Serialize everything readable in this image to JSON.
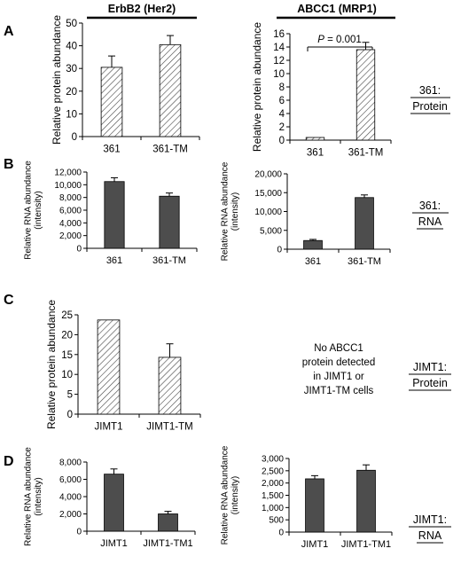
{
  "figure": {
    "column_titles": [
      "ErbB2 (Her2)",
      "ABCC1 (MRP1)"
    ],
    "panel_letters": [
      "A",
      "B",
      "C",
      "D"
    ],
    "row_labels": [
      {
        "line1": "361:",
        "line2": "Protein"
      },
      {
        "line1": "361:",
        "line2": "RNA"
      },
      {
        "line1": "JIMT1:",
        "line2": "Protein"
      },
      {
        "line1": "JIMT1:",
        "line2": "RNA"
      }
    ],
    "no_data_note": [
      "No ABCC1",
      "protein detected",
      "in JIMT1 or",
      "JIMT1-TM cells"
    ],
    "p_value": {
      "label": "P",
      "text": " = 0.001"
    }
  },
  "colors": {
    "hatched_fill": "#ffffff",
    "hatch_line": "#444444",
    "solid_fill": "#4d4d4d",
    "axis": "#000000"
  },
  "chart_data": [
    {
      "id": "A-left",
      "type": "bar",
      "fill": "hatched",
      "categories": [
        "361",
        "361-TM"
      ],
      "values": [
        30.5,
        40.5
      ],
      "errors": [
        5,
        4
      ],
      "ylim": [
        0,
        50
      ],
      "yticks": [
        0,
        10,
        20,
        30,
        40,
        50
      ],
      "ytick_labels": [
        "0",
        "10",
        "20",
        "30",
        "40",
        "50"
      ],
      "ylabel_lines": [
        "Relative protein abundance"
      ]
    },
    {
      "id": "A-right",
      "type": "bar",
      "fill": "hatched",
      "categories": [
        "361",
        "361-TM"
      ],
      "values": [
        0.4,
        13.6
      ],
      "errors": [
        0,
        1.1
      ],
      "ylim": [
        0,
        16
      ],
      "yticks": [
        0,
        2,
        4,
        6,
        8,
        10,
        12,
        14,
        16
      ],
      "ytick_labels": [
        "0",
        "2",
        "4",
        "6",
        "8",
        "10",
        "12",
        "14",
        "16"
      ],
      "ylabel_lines": [
        "Relative protein abundance"
      ]
    },
    {
      "id": "B-left",
      "type": "bar",
      "fill": "solid",
      "categories": [
        "361",
        "361-TM"
      ],
      "values": [
        10500,
        8200
      ],
      "errors": [
        600,
        500
      ],
      "ylim": [
        0,
        12000
      ],
      "yticks": [
        0,
        2000,
        4000,
        6000,
        8000,
        10000,
        12000
      ],
      "ytick_labels": [
        "0",
        "2,000",
        "4,000",
        "6,000",
        "8,000",
        "10,000",
        "12,000"
      ],
      "ylabel_lines": [
        "Relative RNA abundance",
        "(intensity)"
      ]
    },
    {
      "id": "B-right",
      "type": "bar",
      "fill": "solid",
      "categories": [
        "361",
        "361-TM"
      ],
      "values": [
        2300,
        13700
      ],
      "errors": [
        300,
        700
      ],
      "ylim": [
        0,
        20000
      ],
      "yticks": [
        0,
        5000,
        10000,
        15000,
        20000
      ],
      "ytick_labels": [
        "0",
        "5,000",
        "10,000",
        "15,000",
        "20,000"
      ],
      "ylabel_lines": [
        "Relative RNA abundance",
        "(intensity)"
      ]
    },
    {
      "id": "C-left",
      "type": "bar",
      "fill": "hatched",
      "categories": [
        "JIMT1",
        "JIMT1-TM"
      ],
      "values": [
        23.7,
        14.3
      ],
      "errors": [
        0,
        3.4
      ],
      "ylim": [
        0,
        25
      ],
      "yticks": [
        0,
        5,
        10,
        15,
        20,
        25
      ],
      "ytick_labels": [
        "0",
        "5",
        "10",
        "15",
        "20",
        "25"
      ],
      "ylabel_lines": [
        "Relative protein abundance"
      ]
    },
    {
      "id": "D-left",
      "type": "bar",
      "fill": "solid",
      "categories": [
        "JIMT1",
        "JIMT1-TM1"
      ],
      "values": [
        6600,
        2000
      ],
      "errors": [
        600,
        300
      ],
      "ylim": [
        0,
        8000
      ],
      "yticks": [
        0,
        2000,
        4000,
        6000,
        8000
      ],
      "ytick_labels": [
        "0",
        "2,000",
        "4,000",
        "6,000",
        "8,000"
      ],
      "ylabel_lines": [
        "Relative RNA abundance",
        "(intensity)"
      ]
    },
    {
      "id": "D-right",
      "type": "bar",
      "fill": "solid",
      "categories": [
        "JIMT1",
        "JIMT1-TM1"
      ],
      "values": [
        2170,
        2520
      ],
      "errors": [
        130,
        220
      ],
      "ylim": [
        0,
        3000
      ],
      "yticks": [
        0,
        500,
        1000,
        1500,
        2000,
        2500,
        3000
      ],
      "ytick_labels": [
        "0",
        "500",
        "1,000",
        "1,500",
        "2,000",
        "2,500",
        "3,000"
      ],
      "ylabel_lines": [
        "Relative RNA abundance",
        "(intensity)"
      ]
    }
  ]
}
